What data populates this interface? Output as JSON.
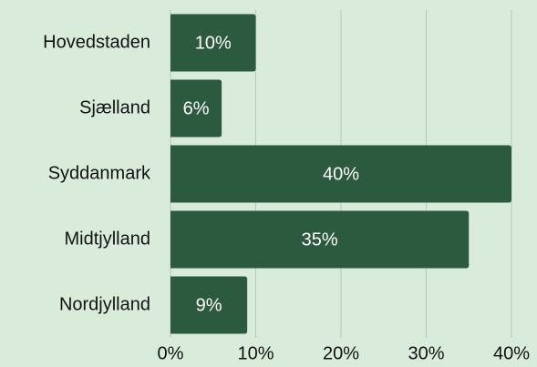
{
  "chart_data": {
    "type": "barh",
    "categories": [
      "Hovedstaden",
      "Sjælland",
      "Syddanmark",
      "Midtjylland",
      "Nordjylland"
    ],
    "values": [
      10,
      6,
      40,
      35,
      9
    ],
    "value_labels": [
      "10%",
      "6%",
      "40%",
      "35%",
      "9%"
    ],
    "color": "#2c5a3e",
    "xlim": [
      0,
      40
    ],
    "xticks": [
      {
        "value": 0,
        "label": "0%"
      },
      {
        "value": 10,
        "label": "10%"
      },
      {
        "value": 20,
        "label": "20%"
      },
      {
        "value": 30,
        "label": "30%"
      },
      {
        "value": 40,
        "label": "40%"
      }
    ],
    "grid": true
  }
}
